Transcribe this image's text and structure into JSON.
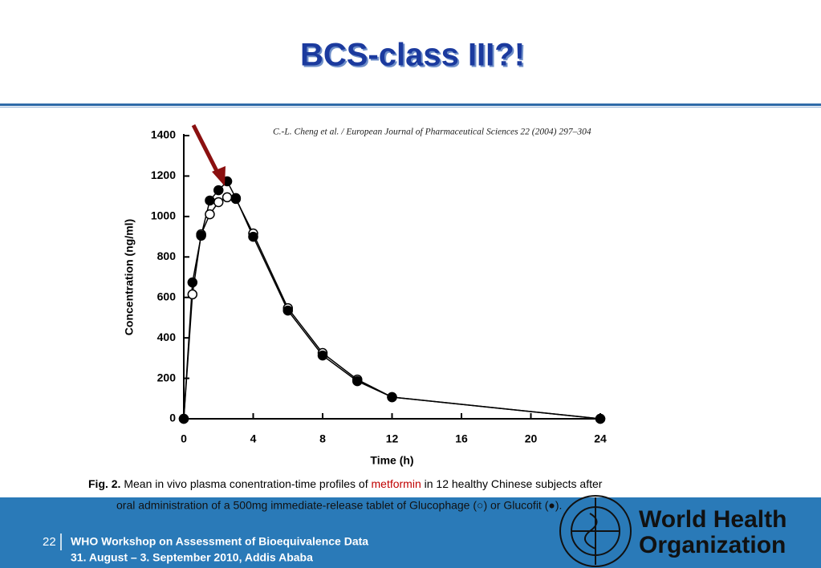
{
  "slide": {
    "title": "BCS-class III?!",
    "citation": "C.-L. Cheng et al. / European Journal of Pharmaceutical Sciences 22 (2004) 297–304",
    "caption": {
      "label": "Fig. 2.",
      "before": "Mean in vivo plasma conentration-time profiles of",
      "highlight": "metformin",
      "after": "in 12 healthy Chinese subjects after",
      "line2": "oral administration of a 500mg immediate-release tablet of Glucophage (○) or Glucofit (●)."
    },
    "footer": {
      "page": "22",
      "event": "WHO Workshop on Assessment of Bioequivalence Data",
      "dates": "31. August – 3. September 2010, Addis Ababa",
      "logo_line1": "World Health",
      "logo_line2": "Organization"
    }
  },
  "chart_data": {
    "type": "line",
    "x": [
      0,
      0.5,
      1,
      1.5,
      2,
      2.5,
      3,
      4,
      6,
      8,
      10,
      12,
      24
    ],
    "series": [
      {
        "color": "#000000",
        "marker": "open",
        "values": [
          0,
          615,
          912,
          1011,
          1071,
          1095,
          1087,
          916,
          547,
          325,
          194,
          107,
          0
        ]
      },
      {
        "color": "#000000",
        "marker": "filled",
        "values": [
          0,
          674,
          905,
          1079,
          1130,
          1174,
          1091,
          900,
          535,
          313,
          186,
          107,
          0
        ]
      }
    ],
    "xlabel": "Time (h)",
    "ylabel": "Concentration (ng/ml)",
    "xlim": [
      0,
      24
    ],
    "xticks": [
      0,
      4,
      8,
      12,
      16,
      20,
      24
    ],
    "ylim": [
      0,
      1400
    ],
    "yticks": [
      0,
      200,
      400,
      600,
      800,
      1000,
      1200,
      1400
    ]
  }
}
